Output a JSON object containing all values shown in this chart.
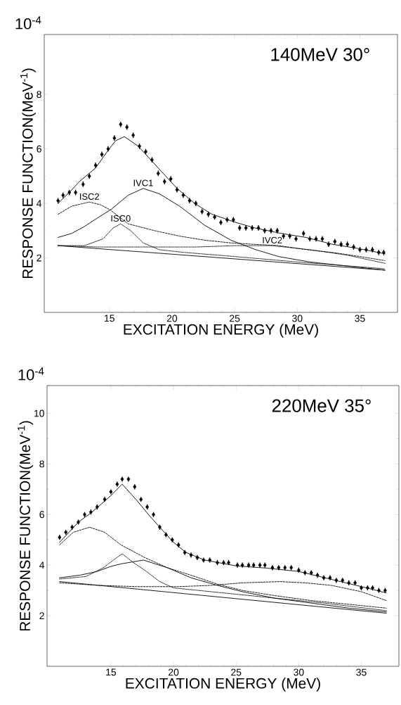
{
  "chart_data": [
    {
      "type": "line",
      "title": "140MeV 30°",
      "xlabel": "EXCITATION ENERGY (MeV)",
      "ylabel": "RESPONSE FUNCTION(MeV$^{-1}$)",
      "annotations": [
        "10$^{-4}$",
        {
          "text": "ISC2",
          "x": 13.4,
          "y": 4.05
        },
        {
          "text": "IVC1",
          "x": 17.7,
          "y": 4.55
        },
        {
          "text": "ISC0",
          "x": 15.9,
          "y": 3.25
        },
        {
          "text": "IVC2",
          "x": 28,
          "y": 2.45
        }
      ],
      "xlim": [
        9.8,
        38
      ],
      "ylim": [
        0,
        10.2
      ],
      "xticks": [
        15,
        20,
        25,
        30,
        35
      ],
      "yticks": [
        2,
        4,
        6,
        8
      ],
      "series": [
        {
          "type": "scatter",
          "color": "#000000",
          "x": [
            10.9,
            11.3,
            11.8,
            12.3,
            12.9,
            13.4,
            13.9,
            14.4,
            14.9,
            15.4,
            15.9,
            16.4,
            16.9,
            17.4,
            17.9,
            18.4,
            18.9,
            19.4,
            19.9,
            20.4,
            20.9,
            21.4,
            21.9,
            22.4,
            22.9,
            23.4,
            23.9,
            24.4,
            24.9,
            25.4,
            25.9,
            26.4,
            26.9,
            27.4,
            27.9,
            28.4,
            28.9,
            29.4,
            29.9,
            30.5,
            31.0,
            31.5,
            32.0,
            32.5,
            33.0,
            33.5,
            34.0,
            34.5,
            35.0,
            35.5,
            36.0,
            36.5,
            36.9
          ],
          "values": [
            4.1,
            4.3,
            4.4,
            4.4,
            4.7,
            5.0,
            5.4,
            5.8,
            6.0,
            6.4,
            6.9,
            6.8,
            6.5,
            6.1,
            5.9,
            5.6,
            5.1,
            4.8,
            4.9,
            4.5,
            4.3,
            4.1,
            4.0,
            3.7,
            3.6,
            3.5,
            3.3,
            3.4,
            3.4,
            3.1,
            3.1,
            3.1,
            3.1,
            3.0,
            3.0,
            3.0,
            2.8,
            2.8,
            2.7,
            2.9,
            2.7,
            2.7,
            2.7,
            2.5,
            2.6,
            2.5,
            2.5,
            2.4,
            2.3,
            2.3,
            2.3,
            2.2,
            2.2
          ],
          "errors": [
            0.1,
            0.1,
            0.1,
            0.1,
            0.1,
            0.1,
            0.1,
            0.1,
            0.1,
            0.1,
            0.1,
            0.1,
            0.1,
            0.1,
            0.1,
            0.1,
            0.1,
            0.1,
            0.1,
            0.1,
            0.1,
            0.1,
            0.1,
            0.1,
            0.1,
            0.1,
            0.1,
            0.1,
            0.1,
            0.1,
            0.1,
            0.1,
            0.1,
            0.1,
            0.1,
            0.1,
            0.1,
            0.1,
            0.1,
            0.1,
            0.1,
            0.1,
            0.1,
            0.1,
            0.1,
            0.1,
            0.1,
            0.1,
            0.1,
            0.1,
            0.1,
            0.1,
            0.1
          ]
        },
        {
          "line_style": "solid",
          "color": "#000000",
          "x": [
            10.9,
            12,
            12.6,
            13.9,
            14.9,
            15.5,
            16.2,
            17.3,
            18.5,
            19.7,
            20.4,
            21.8,
            23.2,
            25.1,
            26.6,
            28.7,
            30.7,
            32.8,
            34.8,
            37
          ],
          "values": [
            4.0,
            4.5,
            4.8,
            5.3,
            5.95,
            6.3,
            6.45,
            6.1,
            5.5,
            4.9,
            4.55,
            4.0,
            3.6,
            3.3,
            3.1,
            2.9,
            2.75,
            2.5,
            2.35,
            2.15
          ]
        },
        {
          "line_style": "dashed",
          "color": "#000000",
          "x": [
            10.9,
            12,
            13.4,
            14.3,
            15.1,
            16.5,
            18.6,
            20.6,
            22.6,
            24.7,
            26.5,
            28.5,
            30.8,
            32.8,
            35,
            37
          ],
          "values": [
            3.6,
            3.9,
            4.05,
            3.95,
            3.75,
            3.25,
            3.0,
            2.8,
            2.65,
            2.55,
            2.5,
            2.45,
            2.3,
            2.2,
            2.05,
            1.9
          ]
        },
        {
          "line_style": "solid",
          "color": "#000000",
          "x": [
            10.9,
            12,
            13,
            14,
            15.2,
            16.5,
            17.7,
            19,
            20.6,
            22.6,
            24.7,
            26.7,
            28.5,
            31,
            34,
            37
          ],
          "values": [
            2.75,
            2.9,
            3.15,
            3.45,
            3.8,
            4.3,
            4.55,
            4.35,
            3.9,
            3.2,
            2.65,
            2.3,
            2.05,
            1.85,
            1.7,
            1.55
          ]
        },
        {
          "line_style": "dotted",
          "color": "#000000",
          "x": [
            10.9,
            13,
            14.5,
            15.3,
            15.9,
            16.7,
            17.7,
            19,
            21,
            25,
            30,
            37
          ],
          "values": [
            2.45,
            2.45,
            2.7,
            3.1,
            3.25,
            3.0,
            2.55,
            2.3,
            2.2,
            2.05,
            1.85,
            1.6
          ]
        },
        {
          "line_style": "dotted",
          "color": "#000000",
          "x": [
            10.9,
            14,
            18,
            22,
            25,
            28,
            31,
            34,
            37
          ],
          "values": [
            2.45,
            2.4,
            2.4,
            2.4,
            2.45,
            2.45,
            2.3,
            2.1,
            1.8
          ]
        },
        {
          "line_style": "solid",
          "color": "#000000",
          "x": [
            10.9,
            37
          ],
          "values": [
            2.45,
            1.55
          ]
        }
      ]
    },
    {
      "type": "line",
      "title": "220MeV 35°",
      "xlabel": "EXCITATION ENERGY (MeV)",
      "ylabel": "RESPONSE FUNCTION(MeV$^{-1}$)",
      "annotations": [
        "10$^{-4}$"
      ],
      "xlim": [
        9.9,
        38
      ],
      "ylim": [
        0,
        11.1
      ],
      "xticks": [
        15,
        20,
        25,
        30,
        35
      ],
      "yticks": [
        2,
        4,
        6,
        8,
        10
      ],
      "series": [
        {
          "type": "scatter",
          "color": "#000000",
          "x": [
            10.9,
            11.4,
            11.9,
            12.4,
            12.9,
            13.4,
            13.9,
            14.5,
            15.0,
            15.5,
            15.9,
            16.4,
            16.9,
            17.4,
            17.9,
            18.4,
            18.9,
            19.4,
            19.9,
            20.4,
            20.9,
            21.4,
            21.9,
            22.4,
            22.9,
            23.5,
            24.0,
            24.4,
            25.1,
            25.5,
            26.0,
            26.4,
            26.9,
            27.3,
            27.9,
            28.4,
            28.9,
            29.4,
            30.0,
            30.5,
            31.0,
            31.5,
            32.0,
            32.5,
            33.0,
            33.5,
            34.0,
            34.5,
            35.0,
            35.5,
            35.9,
            36.4,
            36.9
          ],
          "values": [
            5.1,
            5.3,
            5.5,
            5.7,
            6.0,
            6.1,
            6.3,
            6.6,
            6.9,
            7.2,
            7.4,
            7.4,
            7.1,
            6.6,
            6.3,
            6.0,
            5.5,
            5.2,
            5.0,
            4.8,
            4.5,
            4.4,
            4.3,
            4.2,
            4.2,
            4.1,
            4.1,
            4.1,
            4.0,
            4.0,
            4.0,
            4.0,
            4.0,
            4.0,
            3.9,
            3.9,
            3.9,
            3.9,
            3.8,
            3.7,
            3.7,
            3.6,
            3.5,
            3.5,
            3.4,
            3.4,
            3.3,
            3.3,
            3.1,
            3.1,
            3.1,
            3.0,
            3.0
          ],
          "errors": [
            0.1,
            0.1,
            0.1,
            0.1,
            0.1,
            0.1,
            0.1,
            0.1,
            0.1,
            0.1,
            0.1,
            0.1,
            0.1,
            0.1,
            0.1,
            0.1,
            0.1,
            0.1,
            0.1,
            0.1,
            0.1,
            0.1,
            0.1,
            0.1,
            0.1,
            0.1,
            0.1,
            0.1,
            0.1,
            0.1,
            0.1,
            0.1,
            0.1,
            0.1,
            0.1,
            0.1,
            0.1,
            0.1,
            0.1,
            0.1,
            0.1,
            0.1,
            0.1,
            0.1,
            0.1,
            0.1,
            0.1,
            0.1,
            0.1,
            0.1,
            0.1,
            0.1,
            0.1
          ]
        },
        {
          "line_style": "solid",
          "color": "#000000",
          "x": [
            10.9,
            12.4,
            13.5,
            15,
            15.9,
            17,
            18,
            18.9,
            20,
            21,
            22.5,
            25,
            27.5,
            30,
            32.5,
            35,
            37
          ],
          "values": [
            4.9,
            5.7,
            6.1,
            6.75,
            7.2,
            6.6,
            6.0,
            5.5,
            4.9,
            4.5,
            4.2,
            3.97,
            3.88,
            3.75,
            3.45,
            3.15,
            2.9
          ]
        },
        {
          "line_style": "dashed",
          "color": "#000000",
          "x": [
            10.9,
            12,
            13.3,
            14.5,
            15.8,
            17.7,
            19.5,
            21.4,
            23.5,
            25.5,
            28,
            31,
            34,
            37
          ],
          "values": [
            4.8,
            5.3,
            5.5,
            5.3,
            4.8,
            4.3,
            3.9,
            3.6,
            3.25,
            3.0,
            2.8,
            2.6,
            2.45,
            2.3
          ]
        },
        {
          "line_style": "solid",
          "color": "#000000",
          "x": [
            10.9,
            12.5,
            13.9,
            15,
            15.8,
            17.6,
            19.5,
            21.4,
            23.5,
            25.5,
            28,
            31,
            34,
            37
          ],
          "values": [
            3.5,
            3.6,
            3.75,
            3.95,
            4.05,
            4.2,
            3.9,
            3.5,
            3.2,
            2.95,
            2.7,
            2.5,
            2.3,
            2.15
          ]
        },
        {
          "line_style": "dotted",
          "color": "#000000",
          "x": [
            10.9,
            13,
            14.4,
            15.2,
            15.9,
            16.8,
            17.7,
            18.9,
            20,
            23,
            27,
            32,
            37
          ],
          "values": [
            3.45,
            3.55,
            3.9,
            4.2,
            4.45,
            4.1,
            3.8,
            3.35,
            3.1,
            2.95,
            2.75,
            2.5,
            2.2
          ]
        },
        {
          "line_style": "dashed",
          "color": "#000000",
          "x": [
            10.9,
            14,
            17,
            20.4,
            23,
            25.5,
            28.5,
            30.5,
            32.6,
            35,
            37
          ],
          "values": [
            3.3,
            3.2,
            3.15,
            3.15,
            3.2,
            3.3,
            3.35,
            3.3,
            3.2,
            2.95,
            2.6
          ]
        },
        {
          "line_style": "solid",
          "color": "#000000",
          "x": [
            10.9,
            37
          ],
          "values": [
            3.35,
            2.1
          ]
        }
      ]
    }
  ]
}
